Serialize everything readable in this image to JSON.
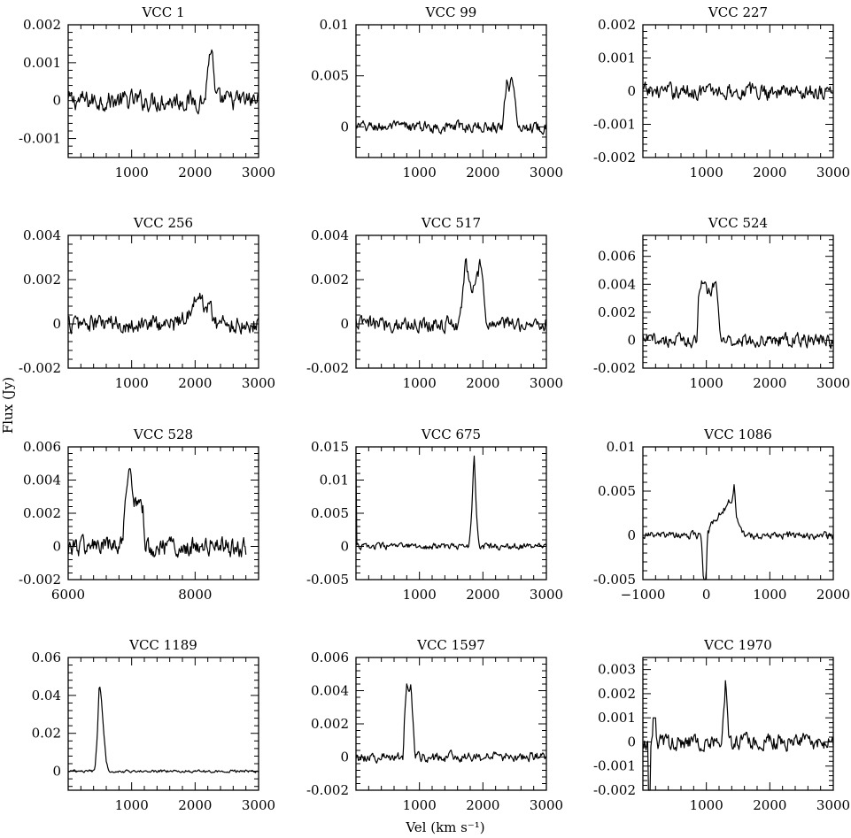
{
  "figure": {
    "xlabel": "Vel (km s⁻¹)",
    "ylabel": "Flux (Jy)"
  },
  "chart_data": [
    {
      "type": "line",
      "title": "VCC 1",
      "xlim": [
        0,
        3000
      ],
      "ylim": [
        -0.0015,
        0.002
      ],
      "xticks": [
        1000,
        2000,
        3000
      ],
      "xtick_labels": [
        "1000",
        "2000",
        "3000"
      ],
      "yticks": [
        -0.001,
        0,
        0.001,
        0.002
      ],
      "ytick_labels": [
        "-0.001",
        "0",
        "0.001",
        "0.002"
      ],
      "noise": 0.00022,
      "feature": [
        [
          0,
          2150,
          0
        ],
        [
          2185,
          0.0005
        ],
        [
          2215,
          0.0011
        ],
        [
          2250,
          0.0014
        ],
        [
          2280,
          0.001
        ],
        [
          2310,
          0.0002
        ],
        [
          2330,
          0
        ]
      ]
    },
    {
      "type": "line",
      "title": "VCC 99",
      "xlim": [
        0,
        3000
      ],
      "ylim": [
        -0.003,
        0.01
      ],
      "xticks": [
        1000,
        2000,
        3000
      ],
      "xtick_labels": [
        "1000",
        "2000",
        "3000"
      ],
      "yticks": [
        0,
        0.005,
        0.01
      ],
      "ytick_labels": [
        "0",
        "0.005",
        "0.01"
      ],
      "noise": 0.00045,
      "feature": [
        [
          0,
          2300,
          0
        ],
        [
          2350,
          0.003
        ],
        [
          2380,
          0.0048
        ],
        [
          2420,
          0.0038
        ],
        [
          2460,
          0.005
        ],
        [
          2500,
          0.003
        ],
        [
          2540,
          0
        ]
      ]
    },
    {
      "type": "line",
      "title": "VCC 227",
      "xlim": [
        0,
        3000
      ],
      "ylim": [
        -0.002,
        0.002
      ],
      "xticks": [
        1000,
        2000,
        3000
      ],
      "xtick_labels": [
        "1000",
        "2000",
        "3000"
      ],
      "yticks": [
        -0.002,
        -0.001,
        0,
        0.001,
        0.002
      ],
      "ytick_labels": [
        "-0.002",
        "-0.001",
        "0",
        "0.001",
        "0.002"
      ],
      "noise": 0.0002,
      "feature": []
    },
    {
      "type": "line",
      "title": "VCC 256",
      "xlim": [
        0,
        3000
      ],
      "ylim": [
        -0.002,
        0.004
      ],
      "xticks": [
        1000,
        2000,
        3000
      ],
      "xtick_labels": [
        "1000",
        "2000",
        "3000"
      ],
      "yticks": [
        -0.002,
        0,
        0.002,
        0.004
      ],
      "ytick_labels": [
        "-0.002",
        "0",
        "0.002",
        "0.004"
      ],
      "noise": 0.00035,
      "feature": [
        [
          0,
          1700,
          0
        ],
        [
          1850,
          0.0004
        ],
        [
          2000,
          0.001
        ],
        [
          2100,
          0.0011
        ],
        [
          2250,
          0.0006
        ],
        [
          2350,
          0
        ]
      ]
    },
    {
      "type": "line",
      "title": "VCC 517",
      "xlim": [
        0,
        3000
      ],
      "ylim": [
        -0.002,
        0.004
      ],
      "xticks": [
        1000,
        2000,
        3000
      ],
      "xtick_labels": [
        "1000",
        "2000",
        "3000"
      ],
      "yticks": [
        -0.002,
        0,
        0.002,
        0.004
      ],
      "ytick_labels": [
        "-0.002",
        "0",
        "0.002",
        "0.004"
      ],
      "noise": 0.0003,
      "feature": [
        [
          0,
          1600,
          0
        ],
        [
          1680,
          0.0012
        ],
        [
          1730,
          0.0028
        ],
        [
          1800,
          0.0018
        ],
        [
          1880,
          0.0016
        ],
        [
          1960,
          0.0027
        ],
        [
          2020,
          0.001
        ],
        [
          2060,
          0
        ]
      ]
    },
    {
      "type": "line",
      "title": "VCC 524",
      "xlim": [
        0,
        3000
      ],
      "ylim": [
        -0.002,
        0.0075
      ],
      "xticks": [
        1000,
        2000,
        3000
      ],
      "xtick_labels": [
        "1000",
        "2000",
        "3000"
      ],
      "yticks": [
        -0.002,
        0,
        0.002,
        0.004,
        0.006
      ],
      "ytick_labels": [
        "-0.002",
        "0",
        "0.002",
        "0.004",
        "0.006"
      ],
      "noise": 0.0004,
      "feature": [
        [
          0,
          850,
          0
        ],
        [
          880,
          0.0035
        ],
        [
          930,
          0.0045
        ],
        [
          1020,
          0.0032
        ],
        [
          1100,
          0.0037
        ],
        [
          1170,
          0.0036
        ],
        [
          1210,
          0.001
        ],
        [
          1240,
          0
        ]
      ]
    },
    {
      "type": "line",
      "title": "VCC 528",
      "xlim": [
        6000,
        9000
      ],
      "ylim": [
        -0.002,
        0.006
      ],
      "xticks": [
        6000,
        8000
      ],
      "xtick_labels": [
        "6000",
        "8000"
      ],
      "yticks": [
        -0.002,
        0,
        0.002,
        0.004,
        0.006
      ],
      "ytick_labels": [
        "-0.002",
        "0",
        "0.002",
        "0.004",
        "0.006"
      ],
      "xmax_data": 8800,
      "noise": 0.0005,
      "feature": [
        [
          0,
          6850,
          0
        ],
        [
          6920,
          0.003
        ],
        [
          6970,
          0.0043
        ],
        [
          7040,
          0.0027
        ],
        [
          7120,
          0.003
        ],
        [
          7180,
          0.0022
        ],
        [
          7220,
          0
        ]
      ]
    },
    {
      "type": "line",
      "title": "VCC 675",
      "xlim": [
        0,
        3000
      ],
      "ylim": [
        -0.005,
        0.015
      ],
      "xticks": [
        1000,
        2000,
        3000
      ],
      "xtick_labels": [
        "1000",
        "2000",
        "3000"
      ],
      "yticks": [
        -0.005,
        0,
        0.005,
        0.01,
        0.015
      ],
      "ytick_labels": [
        "-0.005",
        "0",
        "0.005",
        "0.01",
        "0.015"
      ],
      "noise": 0.0004,
      "feature": [
        [
          0,
          1780,
          0
        ],
        [
          1820,
          0.005
        ],
        [
          1860,
          0.014
        ],
        [
          1900,
          0.005
        ],
        [
          1940,
          0
        ]
      ],
      "edge_spike": 0.013
    },
    {
      "type": "line",
      "title": "VCC 1086",
      "xlim": [
        -1000,
        2000
      ],
      "ylim": [
        -0.005,
        0.01
      ],
      "xticks": [
        -1000,
        0,
        1000,
        2000
      ],
      "xtick_labels": [
        "−1000",
        "0",
        "1000",
        "2000"
      ],
      "yticks": [
        -0.005,
        0,
        0.005,
        0.01
      ],
      "ytick_labels": [
        "-0.005",
        "0",
        "0.005",
        "0.01"
      ],
      "noise": 0.00035,
      "feature": [
        [
          0,
          -80,
          0
        ],
        [
          -40,
          -0.006
        ],
        [
          -10,
          -0.006
        ],
        [
          20,
          0.0003
        ],
        [
          150,
          0.002
        ],
        [
          300,
          0.003
        ],
        [
          400,
          0.0042
        ],
        [
          440,
          0.0057
        ],
        [
          480,
          0.002
        ],
        [
          560,
          0.0005
        ],
        [
          600,
          0
        ]
      ]
    },
    {
      "type": "line",
      "title": "VCC 1189",
      "xlim": [
        0,
        3000
      ],
      "ylim": [
        -0.01,
        0.06
      ],
      "xticks": [
        1000,
        2000,
        3000
      ],
      "xtick_labels": [
        "1000",
        "2000",
        "3000"
      ],
      "yticks": [
        0,
        0.02,
        0.04,
        0.06
      ],
      "ytick_labels": [
        "0",
        "0.02",
        "0.04",
        "0.06"
      ],
      "noise": 0.0006,
      "feature": [
        [
          0,
          420,
          0
        ],
        [
          460,
          0.02
        ],
        [
          490,
          0.046
        ],
        [
          520,
          0.04
        ],
        [
          560,
          0.02
        ],
        [
          600,
          0.005
        ],
        [
          640,
          0
        ]
      ]
    },
    {
      "type": "line",
      "title": "VCC 1597",
      "xlim": [
        0,
        3000
      ],
      "ylim": [
        -0.002,
        0.006
      ],
      "xticks": [
        1000,
        2000,
        3000
      ],
      "xtick_labels": [
        "1000",
        "2000",
        "3000"
      ],
      "yticks": [
        -0.002,
        0,
        0.002,
        0.004,
        0.006
      ],
      "ytick_labels": [
        "-0.002",
        "0",
        "0.002",
        "0.004",
        "0.006"
      ],
      "noise": 0.00025,
      "feature": [
        [
          0,
          740,
          0
        ],
        [
          770,
          0.003
        ],
        [
          800,
          0.0046
        ],
        [
          840,
          0.0042
        ],
        [
          870,
          0.0044
        ],
        [
          900,
          0.002
        ],
        [
          930,
          0
        ]
      ]
    },
    {
      "type": "line",
      "title": "VCC 1970",
      "xlim": [
        0,
        3000
      ],
      "ylim": [
        -0.002,
        0.0035
      ],
      "xticks": [
        1000,
        2000,
        3000
      ],
      "xtick_labels": [
        "1000",
        "2000",
        "3000"
      ],
      "yticks": [
        -0.002,
        -0.001,
        0,
        0.001,
        0.002,
        0.003
      ],
      "ytick_labels": [
        "-0.002",
        "-0.001",
        "0",
        "0.001",
        "0.002",
        "0.003"
      ],
      "noise": 0.00028,
      "feature": [
        [
          0,
          1240,
          0
        ],
        [
          1270,
          0.0012
        ],
        [
          1300,
          0.0024
        ],
        [
          1330,
          0.0012
        ],
        [
          1360,
          0
        ]
      ],
      "dip": [
        [
          80,
          120,
          -0.0025
        ],
        [
          160,
          200,
          0.001
        ]
      ]
    }
  ]
}
